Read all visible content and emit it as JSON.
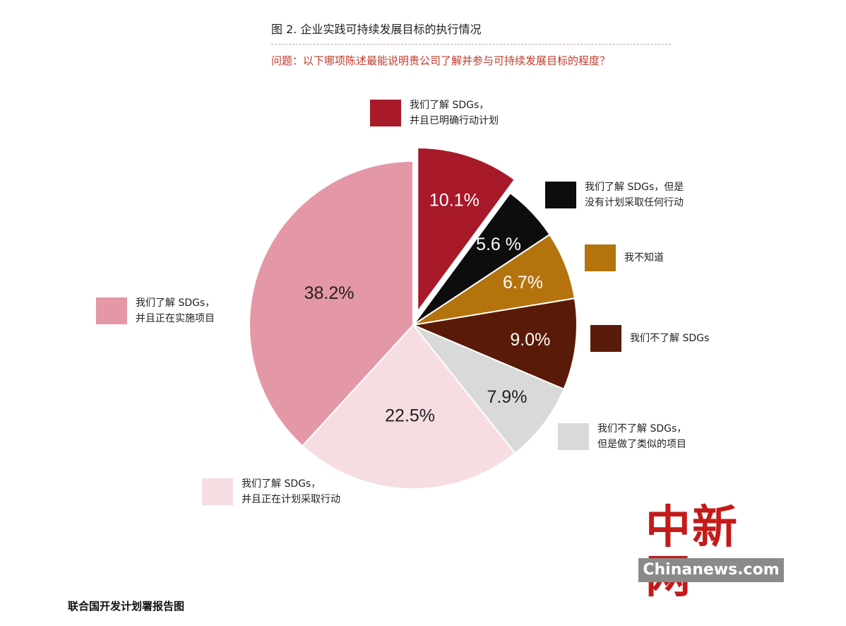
{
  "header": {
    "title": "图 2. 企业实践可持续发展目标的执行情况",
    "question": "问题：以下哪项陈述最能说明贵公司了解并参与可持续发展目标的程度？"
  },
  "chart_data": {
    "type": "pie",
    "title": "图 2. 企业实践可持续发展目标的执行情况",
    "slices": [
      {
        "label_lines": [
          "我们了解 SDGs，",
          "并且已明确行动计划"
        ],
        "value": 10.1,
        "display": "10.1%",
        "color": "#a8192a",
        "exploded": true,
        "label_color": "#ffffff"
      },
      {
        "label_lines": [
          "我们了解 SDGs，但是",
          "没有计划采取任何行动"
        ],
        "value": 5.6,
        "display": "5.6 %",
        "color": "#0d0d0d",
        "exploded": false,
        "label_color": "#ffffff"
      },
      {
        "label_lines": [
          "我不知道"
        ],
        "value": 6.7,
        "display": "6.7%",
        "color": "#b5730e",
        "exploded": false,
        "label_color": "#ffffff"
      },
      {
        "label_lines": [
          "我们不了解 SDGs"
        ],
        "value": 9.0,
        "display": "9.0%",
        "color": "#5a1a08",
        "exploded": false,
        "label_color": "#ffffff"
      },
      {
        "label_lines": [
          "我们不了解 SDGs，",
          "但是做了类似的项目"
        ],
        "value": 7.9,
        "display": "7.9%",
        "color": "#d9d9d9",
        "exploded": false,
        "label_color": "#222222"
      },
      {
        "label_lines": [
          "我们了解 SDGs，",
          "并且正在计划采取行动"
        ],
        "value": 22.5,
        "display": "22.5%",
        "color": "#f6dde1",
        "exploded": false,
        "label_color": "#222222"
      },
      {
        "label_lines": [
          "我们了解 SDGs，",
          "并且正在实施项目"
        ],
        "value": 38.2,
        "display": "38.2%",
        "color": "#e497a6",
        "exploded": false,
        "label_color": "#222222"
      }
    ]
  },
  "legend": [
    {
      "lines": [
        "我们了解 SDGs，",
        "并且已明确行动计划"
      ],
      "color": "#a8192a"
    },
    {
      "lines": [
        "我们了解 SDGs，但是",
        "没有计划采取任何行动"
      ],
      "color": "#0d0d0d"
    },
    {
      "lines": [
        "我不知道"
      ],
      "color": "#b5730e"
    },
    {
      "lines": [
        "我们不了解 SDGs"
      ],
      "color": "#5a1a08"
    },
    {
      "lines": [
        "我们不了解 SDGs，",
        "但是做了类似的项目"
      ],
      "color": "#d9d9d9"
    },
    {
      "lines": [
        "我们了解 SDGs，",
        "并且正在计划采取行动"
      ],
      "color": "#f6dde1"
    },
    {
      "lines": [
        "我们了解 SDGs，",
        "并且正在实施项目"
      ],
      "color": "#e497a6"
    }
  ],
  "watermark": {
    "cn": "中新网",
    "en": "Chinanews.com"
  },
  "source": "联合国开发计划署报告图"
}
